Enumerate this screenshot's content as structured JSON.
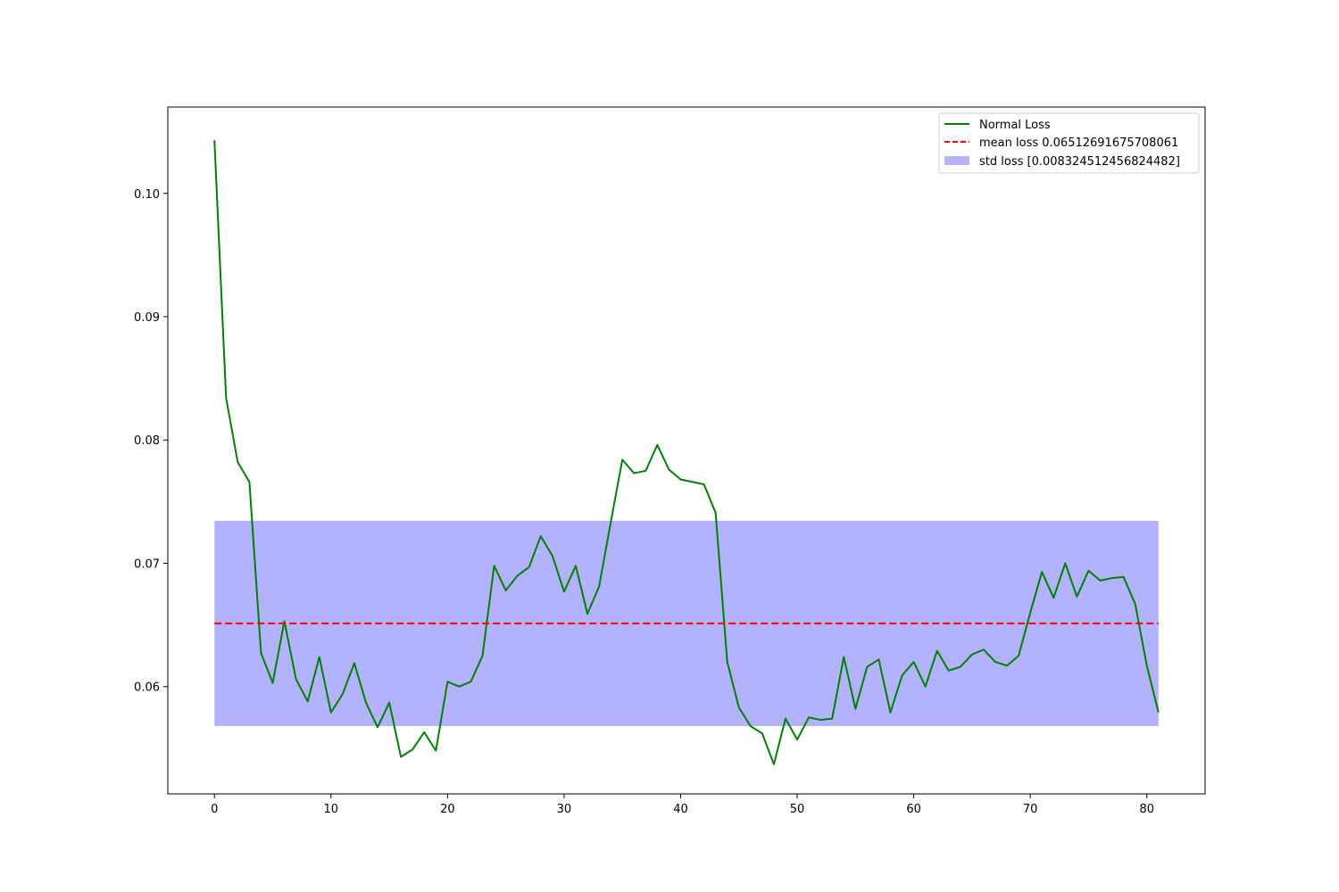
{
  "chart_data": {
    "type": "line",
    "title": "",
    "xlabel": "",
    "ylabel": "",
    "xlim": [
      -4,
      85
    ],
    "ylim": [
      0.0513,
      0.107
    ],
    "xticks": [
      0,
      10,
      20,
      30,
      40,
      50,
      60,
      70,
      80
    ],
    "yticks": [
      0.06,
      0.07,
      0.08,
      0.09,
      0.1
    ],
    "xtick_labels": [
      "0",
      "10",
      "20",
      "30",
      "40",
      "50",
      "60",
      "70",
      "80"
    ],
    "ytick_labels": [
      "0.06",
      "0.07",
      "0.08",
      "0.09",
      "0.10"
    ],
    "grid": false,
    "legend_position": "top-right",
    "series": [
      {
        "name": "Normal Loss",
        "color": "#008000",
        "style": "solid",
        "x": [
          0,
          1,
          2,
          3,
          4,
          5,
          6,
          7,
          8,
          9,
          10,
          11,
          12,
          13,
          14,
          15,
          16,
          17,
          18,
          19,
          20,
          21,
          22,
          23,
          24,
          25,
          26,
          27,
          28,
          29,
          30,
          31,
          32,
          33,
          34,
          35,
          36,
          37,
          38,
          39,
          40,
          41,
          42,
          43,
          44,
          45,
          46,
          47,
          48,
          49,
          50,
          51,
          52,
          53,
          54,
          55,
          56,
          57,
          58,
          59,
          60,
          61,
          62,
          63,
          64,
          65,
          66,
          67,
          68,
          69,
          70,
          71,
          72,
          73,
          74,
          75,
          76,
          77,
          78,
          79,
          80,
          81
        ],
        "y": [
          0.1043,
          0.0834,
          0.0782,
          0.0766,
          0.0627,
          0.0603,
          0.0653,
          0.0606,
          0.0588,
          0.0624,
          0.0579,
          0.0594,
          0.0619,
          0.0587,
          0.0567,
          0.0587,
          0.0543,
          0.0549,
          0.0563,
          0.0548,
          0.0604,
          0.06,
          0.0604,
          0.0625,
          0.0698,
          0.0678,
          0.069,
          0.0697,
          0.0722,
          0.0706,
          0.0677,
          0.0698,
          0.0659,
          0.0681,
          0.0733,
          0.0784,
          0.0773,
          0.0775,
          0.0796,
          0.0776,
          0.0768,
          0.0766,
          0.0764,
          0.0741,
          0.062,
          0.0583,
          0.0568,
          0.0562,
          0.0537,
          0.0574,
          0.0557,
          0.0575,
          0.0573,
          0.0574,
          0.0624,
          0.0582,
          0.0616,
          0.0622,
          0.0579,
          0.0609,
          0.062,
          0.06,
          0.0629,
          0.0613,
          0.0616,
          0.0626,
          0.063,
          0.062,
          0.0617,
          0.0625,
          0.066,
          0.0693,
          0.0672,
          0.07,
          0.0673,
          0.0694,
          0.0686,
          0.0688,
          0.0689,
          0.0667,
          0.0617,
          0.0579
        ]
      },
      {
        "name": "mean loss 0.06512691675708061",
        "color": "#ff0000",
        "style": "dashed",
        "x": [
          0,
          81
        ],
        "y": [
          0.06512691675708061,
          0.06512691675708061
        ]
      }
    ],
    "bands": [
      {
        "name": "std loss [0.008324512456824482]",
        "color": "#b2b2ff",
        "x": [
          0,
          81
        ],
        "lower": 0.05680240430025613,
        "upper": 0.07345142921390509
      }
    ]
  }
}
